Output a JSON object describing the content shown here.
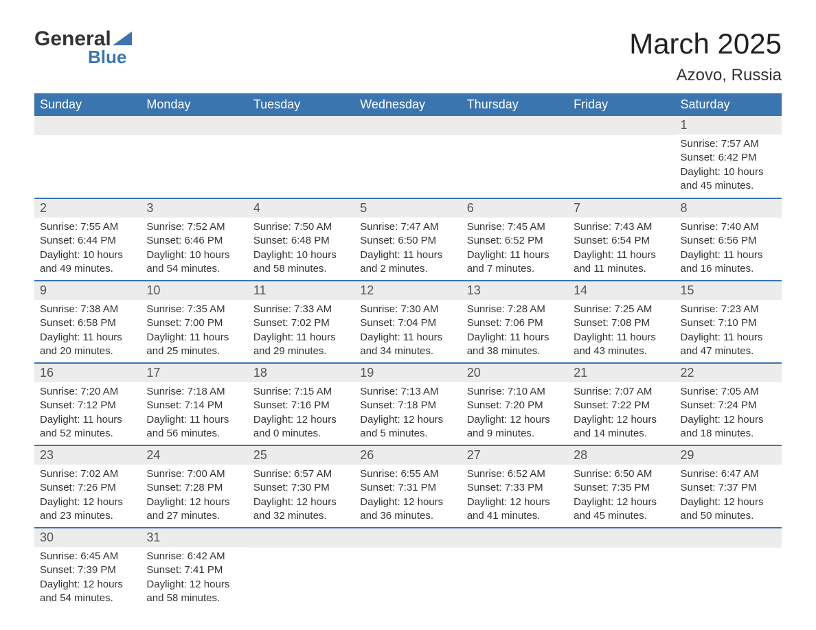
{
  "logo": {
    "text_top": "General",
    "text_bottom": "Blue",
    "accent_color": "#3a75b0"
  },
  "title": "March 2025",
  "subtitle": "Azovo, Russia",
  "header_bg": "#3a75b0",
  "header_text_color": "#ffffff",
  "daynum_bg": "#ececec",
  "row_border_color": "#3a75b0",
  "text_color": "#333333",
  "fontsize_title": 42,
  "fontsize_subtitle": 24,
  "fontsize_header": 18,
  "fontsize_daynum": 18,
  "fontsize_body": 15,
  "day_headers": [
    "Sunday",
    "Monday",
    "Tuesday",
    "Wednesday",
    "Thursday",
    "Friday",
    "Saturday"
  ],
  "weeks": [
    [
      null,
      null,
      null,
      null,
      null,
      null,
      {
        "n": "1",
        "sunrise": "7:57 AM",
        "sunset": "6:42 PM",
        "dh": "10",
        "dm": "45"
      }
    ],
    [
      {
        "n": "2",
        "sunrise": "7:55 AM",
        "sunset": "6:44 PM",
        "dh": "10",
        "dm": "49"
      },
      {
        "n": "3",
        "sunrise": "7:52 AM",
        "sunset": "6:46 PM",
        "dh": "10",
        "dm": "54"
      },
      {
        "n": "4",
        "sunrise": "7:50 AM",
        "sunset": "6:48 PM",
        "dh": "10",
        "dm": "58"
      },
      {
        "n": "5",
        "sunrise": "7:47 AM",
        "sunset": "6:50 PM",
        "dh": "11",
        "dm": "2"
      },
      {
        "n": "6",
        "sunrise": "7:45 AM",
        "sunset": "6:52 PM",
        "dh": "11",
        "dm": "7"
      },
      {
        "n": "7",
        "sunrise": "7:43 AM",
        "sunset": "6:54 PM",
        "dh": "11",
        "dm": "11"
      },
      {
        "n": "8",
        "sunrise": "7:40 AM",
        "sunset": "6:56 PM",
        "dh": "11",
        "dm": "16"
      }
    ],
    [
      {
        "n": "9",
        "sunrise": "7:38 AM",
        "sunset": "6:58 PM",
        "dh": "11",
        "dm": "20"
      },
      {
        "n": "10",
        "sunrise": "7:35 AM",
        "sunset": "7:00 PM",
        "dh": "11",
        "dm": "25"
      },
      {
        "n": "11",
        "sunrise": "7:33 AM",
        "sunset": "7:02 PM",
        "dh": "11",
        "dm": "29"
      },
      {
        "n": "12",
        "sunrise": "7:30 AM",
        "sunset": "7:04 PM",
        "dh": "11",
        "dm": "34"
      },
      {
        "n": "13",
        "sunrise": "7:28 AM",
        "sunset": "7:06 PM",
        "dh": "11",
        "dm": "38"
      },
      {
        "n": "14",
        "sunrise": "7:25 AM",
        "sunset": "7:08 PM",
        "dh": "11",
        "dm": "43"
      },
      {
        "n": "15",
        "sunrise": "7:23 AM",
        "sunset": "7:10 PM",
        "dh": "11",
        "dm": "47"
      }
    ],
    [
      {
        "n": "16",
        "sunrise": "7:20 AM",
        "sunset": "7:12 PM",
        "dh": "11",
        "dm": "52"
      },
      {
        "n": "17",
        "sunrise": "7:18 AM",
        "sunset": "7:14 PM",
        "dh": "11",
        "dm": "56"
      },
      {
        "n": "18",
        "sunrise": "7:15 AM",
        "sunset": "7:16 PM",
        "dh": "12",
        "dm": "0"
      },
      {
        "n": "19",
        "sunrise": "7:13 AM",
        "sunset": "7:18 PM",
        "dh": "12",
        "dm": "5"
      },
      {
        "n": "20",
        "sunrise": "7:10 AM",
        "sunset": "7:20 PM",
        "dh": "12",
        "dm": "9"
      },
      {
        "n": "21",
        "sunrise": "7:07 AM",
        "sunset": "7:22 PM",
        "dh": "12",
        "dm": "14"
      },
      {
        "n": "22",
        "sunrise": "7:05 AM",
        "sunset": "7:24 PM",
        "dh": "12",
        "dm": "18"
      }
    ],
    [
      {
        "n": "23",
        "sunrise": "7:02 AM",
        "sunset": "7:26 PM",
        "dh": "12",
        "dm": "23"
      },
      {
        "n": "24",
        "sunrise": "7:00 AM",
        "sunset": "7:28 PM",
        "dh": "12",
        "dm": "27"
      },
      {
        "n": "25",
        "sunrise": "6:57 AM",
        "sunset": "7:30 PM",
        "dh": "12",
        "dm": "32"
      },
      {
        "n": "26",
        "sunrise": "6:55 AM",
        "sunset": "7:31 PM",
        "dh": "12",
        "dm": "36"
      },
      {
        "n": "27",
        "sunrise": "6:52 AM",
        "sunset": "7:33 PM",
        "dh": "12",
        "dm": "41"
      },
      {
        "n": "28",
        "sunrise": "6:50 AM",
        "sunset": "7:35 PM",
        "dh": "12",
        "dm": "45"
      },
      {
        "n": "29",
        "sunrise": "6:47 AM",
        "sunset": "7:37 PM",
        "dh": "12",
        "dm": "50"
      }
    ],
    [
      {
        "n": "30",
        "sunrise": "6:45 AM",
        "sunset": "7:39 PM",
        "dh": "12",
        "dm": "54"
      },
      {
        "n": "31",
        "sunrise": "6:42 AM",
        "sunset": "7:41 PM",
        "dh": "12",
        "dm": "58"
      },
      null,
      null,
      null,
      null,
      null
    ]
  ],
  "labels": {
    "sunrise": "Sunrise: ",
    "sunset": "Sunset: ",
    "daylight_prefix": "Daylight: ",
    "hours_word": " hours",
    "and_word": "and ",
    "minutes_word": " minutes."
  }
}
